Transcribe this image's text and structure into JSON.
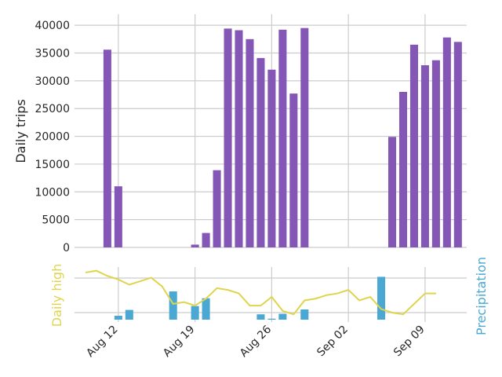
{
  "chart_data": [
    {
      "type": "bar",
      "ylabel": "Daily trips",
      "ylim": [
        0,
        42000
      ],
      "yticks": [
        0,
        5000,
        10000,
        15000,
        20000,
        25000,
        30000,
        35000,
        40000
      ],
      "grid": true,
      "bar_color": "#8456b5",
      "x_range_day": [
        8,
        43.8
      ],
      "x": [
        11,
        12,
        19,
        20,
        21,
        22,
        23,
        24,
        25,
        26,
        27,
        28,
        29,
        37,
        38,
        39,
        40,
        41,
        42,
        43
      ],
      "values": [
        35600,
        11000,
        500,
        2600,
        13900,
        39400,
        39100,
        37500,
        34100,
        32000,
        39200,
        27700,
        39500,
        19900,
        28000,
        36500,
        32800,
        33700,
        37800,
        37000
      ]
    },
    {
      "type": "line+bar",
      "ylabel": "Daily high",
      "ylabel_right": "Precipitation",
      "line_color": "#e0d44c",
      "bar_color": "#4aa8d3",
      "xtick_labels": [
        "Aug 12",
        "Aug 19",
        "Aug 26",
        "Sep 02",
        "Sep 09"
      ],
      "xtick_days": [
        12,
        19,
        26,
        33,
        40
      ],
      "grid": true,
      "high_x": [
        9,
        10,
        11,
        12,
        13,
        14,
        15,
        16,
        17,
        18,
        19,
        20,
        21,
        22,
        23,
        24,
        25,
        26,
        27,
        28,
        29,
        30,
        31,
        32,
        33,
        34,
        35,
        36,
        37,
        38,
        39,
        40,
        41
      ],
      "high_values": [
        80,
        81,
        78,
        76,
        73,
        75,
        77,
        72,
        62,
        63,
        61,
        65,
        71,
        70,
        68,
        61,
        61,
        66,
        58,
        56,
        64,
        65,
        67,
        68,
        70,
        64,
        66,
        59,
        57,
        56,
        62,
        68,
        68
      ],
      "precip_x": [
        12,
        13,
        17,
        19,
        20,
        25,
        26,
        27,
        29,
        36
      ],
      "precip_values": [
        0.08,
        0.2,
        0.58,
        0.28,
        0.44,
        0.11,
        0.02,
        0.12,
        0.21,
        0.88
      ]
    }
  ]
}
